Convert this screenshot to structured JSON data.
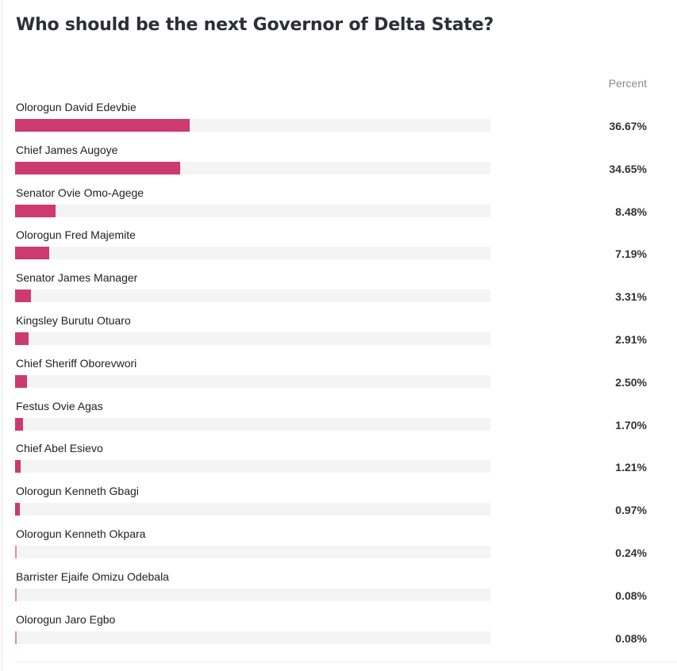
{
  "title": "Who should be the next Governor of Delta State?",
  "column_header": "Percent",
  "colors": {
    "bar": "#cc3a6e",
    "track": "#f4f4f4"
  },
  "chart_data": {
    "type": "bar",
    "orientation": "horizontal",
    "title": "Who should be the next Governor of Delta State?",
    "ylabel": "Percent",
    "xlim": [
      0,
      100
    ],
    "categories": [
      "Olorogun David Edevbie",
      "Chief James Augoye",
      "Senator Ovie Omo-Agege",
      "Olorogun Fred Majemite",
      "Senator James Manager",
      "Kingsley Burutu Otuaro",
      "Chief Sheriff Oborevwori",
      "Festus Ovie Agas",
      "Chief Abel Esievo",
      "Olorogun Kenneth Gbagi",
      "Olorogun Kenneth Okpara",
      "Barrister Ejaife Omizu Odebala",
      "Olorogun Jaro Egbo"
    ],
    "values": [
      36.67,
      34.65,
      8.48,
      7.19,
      3.31,
      2.91,
      2.5,
      1.7,
      1.21,
      0.97,
      0.24,
      0.08,
      0.08
    ],
    "labels": [
      "36.67%",
      "34.65%",
      "8.48%",
      "7.19%",
      "3.31%",
      "2.91%",
      "2.50%",
      "1.70%",
      "1.21%",
      "0.97%",
      "0.24%",
      "0.08%",
      "0.08%"
    ]
  }
}
